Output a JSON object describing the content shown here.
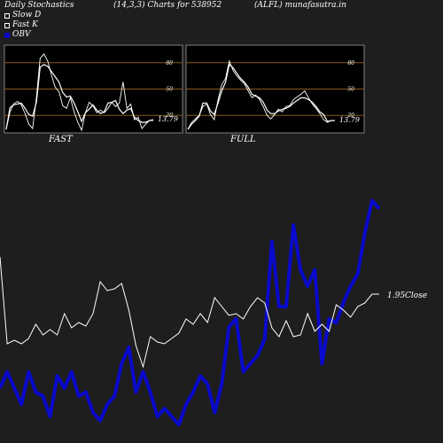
{
  "header": {
    "title": "Daily Stochastics",
    "params": "(14,3,3) Charts for 538952",
    "symbol": "(ALFL) munafasutra.in"
  },
  "legend": [
    {
      "label": "Slow  D",
      "color": "#ffffff",
      "style": "hollow"
    },
    {
      "label": "Fast K",
      "color": "#ffffff",
      "style": "hollow"
    },
    {
      "label": "OBV",
      "color": "#0a0acc",
      "style": "filled"
    }
  ],
  "colors": {
    "background": "#1e1e1e",
    "panel": "#000000",
    "level_line": "#8a5a1a",
    "obv": "#0a0acc",
    "price": "#ffffff"
  },
  "chart_data": [
    {
      "type": "line",
      "title": "FAST",
      "ylim": [
        0,
        100
      ],
      "yticks": [
        20,
        50,
        80
      ],
      "levels": [
        20,
        50,
        80
      ],
      "last_value_label": "13.79",
      "series": [
        {
          "name": "Slow D",
          "values": [
            4,
            29,
            32,
            33,
            34,
            28,
            21,
            19,
            35,
            75,
            78,
            76,
            70,
            64,
            58,
            46,
            41,
            42,
            34,
            24,
            13,
            23,
            27,
            32,
            26,
            22,
            24,
            34,
            35,
            37,
            27,
            22,
            26,
            28,
            18,
            14,
            12,
            12,
            14,
            15
          ]
        },
        {
          "name": "Fast K",
          "values": [
            4,
            24,
            33,
            36,
            32,
            22,
            10,
            5,
            40,
            85,
            90,
            82,
            66,
            52,
            47,
            31,
            28,
            40,
            24,
            12,
            3,
            23,
            35,
            31,
            23,
            26,
            23,
            28,
            35,
            30,
            34,
            58,
            28,
            33,
            15,
            18,
            5,
            10,
            14,
            14
          ]
        }
      ]
    },
    {
      "type": "line",
      "title": "FULL",
      "ylim": [
        0,
        100
      ],
      "yticks": [
        20,
        50,
        80
      ],
      "levels": [
        20,
        50,
        80
      ],
      "last_value_label": "13.79",
      "series": [
        {
          "name": "Slow D",
          "values": [
            4,
            10,
            14,
            19,
            34,
            34,
            25,
            21,
            34,
            48,
            58,
            78,
            74,
            68,
            62,
            58,
            52,
            44,
            42,
            40,
            35,
            26,
            22,
            22,
            25,
            27,
            28,
            30,
            34,
            37,
            40,
            40,
            38,
            35,
            30,
            24,
            21,
            13,
            14,
            14
          ]
        },
        {
          "name": "Fast K",
          "values": [
            4,
            12,
            16,
            20,
            30,
            33,
            21,
            15,
            38,
            55,
            62,
            82,
            71,
            65,
            60,
            56,
            48,
            40,
            43,
            38,
            30,
            20,
            16,
            21,
            27,
            24,
            30,
            31,
            38,
            41,
            44,
            48,
            40,
            33,
            28,
            22,
            15,
            12,
            14,
            14
          ]
        }
      ]
    },
    {
      "type": "line",
      "title": "",
      "last_value_label": "1.95",
      "last_value_suffix": "Close",
      "series": [
        {
          "name": "Close",
          "values": [
            0,
            49,
            47,
            49,
            46,
            38,
            44,
            41,
            44,
            32,
            40,
            37,
            39,
            32,
            14,
            19,
            18,
            15,
            30,
            50,
            62,
            45,
            48,
            49,
            46,
            43,
            35,
            38,
            32,
            37,
            23,
            28,
            33,
            32,
            35,
            28,
            23,
            26,
            40,
            45,
            36,
            45,
            44,
            32,
            42,
            38,
            42,
            27,
            30,
            34,
            28,
            26,
            21,
            21
          ]
        },
        {
          "name": "OBV",
          "values": [
            10,
            14,
            10,
            6,
            14,
            9,
            8,
            3,
            13,
            10,
            14,
            8,
            9,
            4,
            2,
            6,
            8,
            16,
            20,
            9,
            14,
            9,
            3,
            5,
            3,
            1,
            6,
            9,
            13,
            11,
            4,
            11,
            25,
            27,
            14,
            16,
            18,
            22,
            46,
            30,
            30,
            50,
            39,
            35,
            39,
            16,
            27,
            26,
            31,
            35,
            38,
            48,
            56,
            54
          ]
        }
      ]
    }
  ]
}
